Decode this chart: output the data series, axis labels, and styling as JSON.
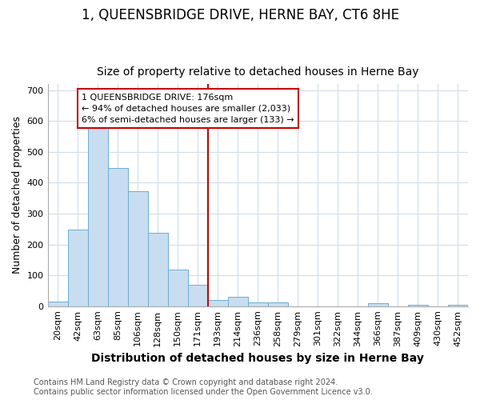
{
  "title": "1, QUEENSBRIDGE DRIVE, HERNE BAY, CT6 8HE",
  "subtitle": "Size of property relative to detached houses in Herne Bay",
  "xlabel": "Distribution of detached houses by size in Herne Bay",
  "ylabel": "Number of detached properties",
  "bar_color": "#c8ddf0",
  "bar_edge_color": "#6aaed6",
  "vline_color": "#cc0000",
  "vline_x_index": 7,
  "categories": [
    "20sqm",
    "42sqm",
    "63sqm",
    "85sqm",
    "106sqm",
    "128sqm",
    "150sqm",
    "171sqm",
    "193sqm",
    "214sqm",
    "236sqm",
    "258sqm",
    "279sqm",
    "301sqm",
    "322sqm",
    "344sqm",
    "366sqm",
    "387sqm",
    "409sqm",
    "430sqm",
    "452sqm"
  ],
  "values": [
    15,
    248,
    585,
    448,
    372,
    237,
    118,
    68,
    20,
    30,
    13,
    12,
    0,
    0,
    0,
    0,
    9,
    0,
    5,
    0,
    5
  ],
  "ylim": [
    0,
    720
  ],
  "yticks": [
    0,
    100,
    200,
    300,
    400,
    500,
    600,
    700
  ],
  "annotation_text": "1 QUEENSBRIDGE DRIVE: 176sqm\n← 94% of detached houses are smaller (2,033)\n6% of semi-detached houses are larger (133) →",
  "annotation_box_color": "#ffffff",
  "annotation_box_edge": "#cc0000",
  "footer": "Contains HM Land Registry data © Crown copyright and database right 2024.\nContains public sector information licensed under the Open Government Licence v3.0.",
  "background_color": "#ffffff",
  "grid_color": "#d0dde8",
  "title_fontsize": 12,
  "subtitle_fontsize": 10,
  "xlabel_fontsize": 10,
  "ylabel_fontsize": 9,
  "tick_fontsize": 8,
  "footer_fontsize": 7,
  "annotation_fontsize": 8
}
